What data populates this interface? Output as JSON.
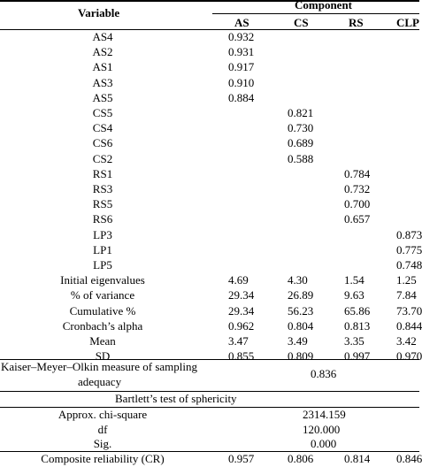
{
  "header": {
    "variable": "Variable",
    "component": "Component",
    "columns": [
      "AS",
      "CS",
      "RS",
      "CLP"
    ]
  },
  "loadings": [
    {
      "var": "AS4",
      "as": "0.932",
      "cs": "",
      "rs": "",
      "clp": ""
    },
    {
      "var": "AS2",
      "as": "0.931",
      "cs": "",
      "rs": "",
      "clp": ""
    },
    {
      "var": "AS1",
      "as": "0.917",
      "cs": "",
      "rs": "",
      "clp": ""
    },
    {
      "var": "AS3",
      "as": "0.910",
      "cs": "",
      "rs": "",
      "clp": ""
    },
    {
      "var": "AS5",
      "as": "0.884",
      "cs": "",
      "rs": "",
      "clp": ""
    },
    {
      "var": "CS5",
      "as": "",
      "cs": "0.821",
      "rs": "",
      "clp": ""
    },
    {
      "var": "CS4",
      "as": "",
      "cs": "0.730",
      "rs": "",
      "clp": ""
    },
    {
      "var": "CS6",
      "as": "",
      "cs": "0.689",
      "rs": "",
      "clp": ""
    },
    {
      "var": "CS2",
      "as": "",
      "cs": "0.588",
      "rs": "",
      "clp": ""
    },
    {
      "var": "RS1",
      "as": "",
      "cs": "",
      "rs": "0.784",
      "clp": ""
    },
    {
      "var": "RS3",
      "as": "",
      "cs": "",
      "rs": "0.732",
      "clp": ""
    },
    {
      "var": "RS5",
      "as": "",
      "cs": "",
      "rs": "0.700",
      "clp": ""
    },
    {
      "var": "RS6",
      "as": "",
      "cs": "",
      "rs": "0.657",
      "clp": ""
    },
    {
      "var": "LP3",
      "as": "",
      "cs": "",
      "rs": "",
      "clp": "0.873"
    },
    {
      "var": "LP1",
      "as": "",
      "cs": "",
      "rs": "",
      "clp": "0.775"
    },
    {
      "var": "LP5",
      "as": "",
      "cs": "",
      "rs": "",
      "clp": "0.748"
    },
    {
      "var": "Initial eigenvalues",
      "as": "4.69",
      "cs": "4.30",
      "rs": "1.54",
      "clp": "1.25"
    },
    {
      "var": "% of variance",
      "as": "29.34",
      "cs": "26.89",
      "rs": "9.63",
      "clp": "7.84"
    },
    {
      "var": "Cumulative %",
      "as": "29.34",
      "cs": "56.23",
      "rs": "65.86",
      "clp": "73.70"
    },
    {
      "var": "Cronbach’s alpha",
      "as": "0.962",
      "cs": "0.804",
      "rs": "0.813",
      "clp": "0.844"
    },
    {
      "var": "Mean",
      "as": "3.47",
      "cs": "3.49",
      "rs": "3.35",
      "clp": "3.42"
    },
    {
      "var": "SD",
      "as": "0.855",
      "cs": "0.809",
      "rs": "0.997",
      "clp": "0.970"
    }
  ],
  "kmo": {
    "label_line1": "Kaiser–Meyer–Olkin measure of sampling",
    "label_line2": "adequacy",
    "value": "0.836"
  },
  "bartlett": {
    "title": "Bartlett’s test of sphericity",
    "rows": [
      {
        "label": "Approx. chi-square",
        "value": "2314.159"
      },
      {
        "label": "df",
        "value": "120.000"
      },
      {
        "label": "Sig.",
        "value": "0.000"
      }
    ]
  },
  "composite_reliability": {
    "label": "Composite reliability (CR)",
    "as": "0.957",
    "cs": "0.806",
    "rs": "0.814",
    "clp": "0.846"
  }
}
